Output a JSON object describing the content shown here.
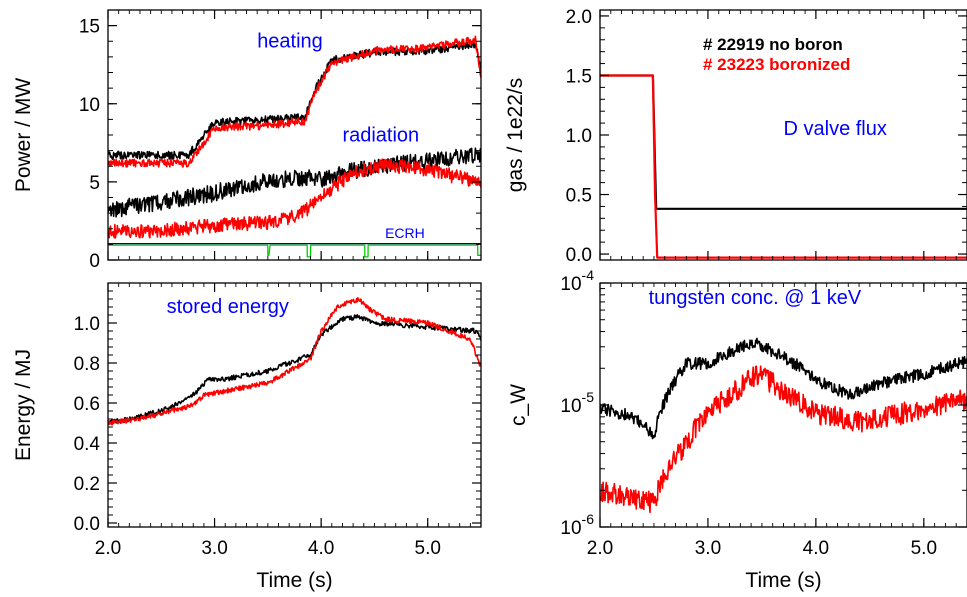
{
  "colors": {
    "black": "#000000",
    "red": "#ff0000",
    "blue": "#0000ff",
    "green": "#00cc00",
    "darkblue": "#0000aa"
  },
  "chart_data": [
    {
      "id": "power",
      "type": "line",
      "ylabel": "Power / MW",
      "xlabel": "",
      "xlim": [
        2.0,
        5.5
      ],
      "ylim": [
        0,
        16
      ],
      "yticks": [
        0,
        5,
        10,
        15
      ],
      "ytick_labels": [
        "0",
        "5",
        "10",
        "15"
      ],
      "xticks": [
        2.0,
        3.0,
        4.0,
        5.0
      ],
      "xtick_labels": [
        "",
        "",
        "",
        ""
      ],
      "annotations": [
        {
          "text": "heating",
          "x": 3.4,
          "y": 13.6,
          "color": "blue"
        },
        {
          "text": "radiation",
          "x": 4.2,
          "y": 7.6,
          "color": "blue"
        },
        {
          "text": "ECRH",
          "x": 4.6,
          "y": 1.4,
          "color": "blue",
          "small": true
        }
      ],
      "series": [
        {
          "key": "heating_black",
          "color": "black",
          "noise": 0.25,
          "x": [
            2.0,
            2.75,
            2.85,
            3.0,
            3.5,
            3.85,
            3.95,
            4.1,
            4.5,
            5.0,
            5.45,
            5.5
          ],
          "y": [
            6.7,
            6.7,
            7.5,
            8.8,
            9.0,
            9.2,
            11.0,
            12.8,
            13.3,
            13.4,
            13.8,
            12.3
          ]
        },
        {
          "key": "heating_red",
          "color": "red",
          "noise": 0.25,
          "x": [
            2.0,
            2.75,
            2.85,
            3.0,
            3.5,
            3.85,
            3.95,
            4.1,
            4.5,
            5.0,
            5.45,
            5.5
          ],
          "y": [
            6.2,
            6.2,
            7.0,
            8.5,
            8.6,
            8.9,
            10.8,
            12.6,
            13.4,
            13.6,
            14.1,
            11.8
          ]
        },
        {
          "key": "radiation_black",
          "color": "black",
          "noise": 0.55,
          "x": [
            2.0,
            2.5,
            3.0,
            3.5,
            3.9,
            4.0,
            4.5,
            5.0,
            5.5
          ],
          "y": [
            3.2,
            3.7,
            4.3,
            5.1,
            5.3,
            5.2,
            6.0,
            6.3,
            6.7
          ]
        },
        {
          "key": "radiation_red",
          "color": "red",
          "noise": 0.45,
          "x": [
            2.0,
            2.5,
            3.0,
            3.5,
            3.8,
            4.0,
            4.3,
            4.6,
            5.0,
            5.5
          ],
          "y": [
            1.8,
            1.9,
            2.2,
            2.4,
            2.9,
            4.0,
            5.6,
            6.1,
            5.8,
            4.9
          ]
        },
        {
          "key": "ecrh_blue",
          "color": "darkblue",
          "noise": 0.0,
          "x": [
            2.0,
            5.5
          ],
          "y": [
            1.05,
            1.05
          ]
        },
        {
          "key": "ecrh_green",
          "color": "green",
          "noise": 0.0,
          "x": [
            2.0,
            3.499,
            3.5,
            3.51,
            3.52,
            3.869,
            3.87,
            3.9,
            3.901,
            4.409,
            4.41,
            4.44,
            4.441,
            5.469,
            5.47,
            5.5
          ],
          "y": [
            0.95,
            0.95,
            0.3,
            0.3,
            0.95,
            0.95,
            0.2,
            0.2,
            0.95,
            0.95,
            0.2,
            0.2,
            0.95,
            0.95,
            0.3,
            0.3
          ]
        }
      ]
    },
    {
      "id": "gas",
      "type": "line",
      "ylabel": "gas / 1e22/s",
      "xlabel": "",
      "xlim": [
        2.0,
        5.4
      ],
      "ylim": [
        -0.05,
        2.05
      ],
      "yticks": [
        0.0,
        0.5,
        1.0,
        1.5,
        2.0
      ],
      "ytick_labels": [
        "0.0",
        "0.5",
        "1.0",
        "1.5",
        "2.0"
      ],
      "xticks": [
        2.0,
        3.0,
        4.0,
        5.0
      ],
      "xtick_labels": [
        "",
        "",
        "",
        ""
      ],
      "annotations": [
        {
          "text": "D valve flux",
          "x": 3.7,
          "y": 1.0,
          "color": "blue"
        }
      ],
      "legend": [
        {
          "text": "# 22919 no boron",
          "color": "black"
        },
        {
          "text": "# 23223 boronized",
          "color": "red"
        }
      ],
      "series": [
        {
          "key": "gas_black",
          "color": "black",
          "noise": 0.0,
          "x": [
            2.0,
            2.49,
            2.52,
            2.53,
            5.4
          ],
          "y": [
            1.5,
            1.5,
            0.38,
            0.38,
            0.38
          ]
        },
        {
          "key": "gas_red",
          "color": "red",
          "noise": 0.0,
          "x": [
            2.0,
            2.49,
            2.51,
            2.53,
            5.4
          ],
          "y": [
            1.5,
            1.5,
            0.5,
            -0.03,
            -0.03
          ]
        }
      ]
    },
    {
      "id": "energy",
      "type": "line",
      "ylabel": "Energy / MJ",
      "xlabel": "Time (s)",
      "xlim": [
        2.0,
        5.5
      ],
      "ylim": [
        -0.02,
        1.2
      ],
      "yticks": [
        0.0,
        0.2,
        0.4,
        0.6,
        0.8,
        1.0
      ],
      "ytick_labels": [
        "0.0",
        "0.2",
        "0.4",
        "0.6",
        "0.8",
        "1.0"
      ],
      "xticks": [
        2.0,
        3.0,
        4.0,
        5.0
      ],
      "xtick_labels": [
        "2.0",
        "3.0",
        "4.0",
        "5.0"
      ],
      "annotations": [
        {
          "text": "stored energy",
          "x": 2.55,
          "y": 1.05,
          "color": "blue"
        }
      ],
      "series": [
        {
          "key": "energy_black",
          "color": "black",
          "noise": 0.012,
          "x": [
            2.0,
            2.3,
            2.6,
            2.8,
            2.95,
            3.1,
            3.5,
            3.9,
            4.0,
            4.2,
            4.35,
            4.5,
            5.0,
            5.45,
            5.5
          ],
          "y": [
            0.5,
            0.53,
            0.58,
            0.64,
            0.72,
            0.72,
            0.76,
            0.84,
            0.94,
            1.02,
            1.03,
            1.0,
            0.98,
            0.96,
            0.92
          ]
        },
        {
          "key": "energy_red",
          "color": "red",
          "noise": 0.012,
          "x": [
            2.0,
            2.3,
            2.6,
            2.8,
            2.9,
            3.1,
            3.5,
            3.9,
            4.0,
            4.15,
            4.35,
            4.45,
            4.6,
            5.0,
            5.4,
            5.5
          ],
          "y": [
            0.5,
            0.52,
            0.56,
            0.59,
            0.64,
            0.66,
            0.7,
            0.82,
            0.96,
            1.08,
            1.12,
            1.07,
            1.02,
            1.0,
            0.92,
            0.78
          ]
        }
      ]
    },
    {
      "id": "tungsten",
      "type": "line",
      "ylabel": "c_W",
      "xlabel": "Time (s)",
      "xlim": [
        2.0,
        5.4
      ],
      "ylim": [
        1e-06,
        0.0001
      ],
      "yscale": "log",
      "yticks": [
        1e-06,
        1e-05,
        0.0001
      ],
      "ytick_labels": [
        {
          "base": "10",
          "exp": "-6"
        },
        {
          "base": "10",
          "exp": "-5"
        },
        {
          "base": "10",
          "exp": "-4"
        }
      ],
      "xticks": [
        2.0,
        3.0,
        4.0,
        5.0
      ],
      "xtick_labels": [
        "2.0",
        "3.0",
        "4.0",
        "5.0"
      ],
      "annotations": [
        {
          "text": "tungsten conc. @ 1 keV",
          "x": 2.45,
          "y": 6.7e-05,
          "color": "blue"
        }
      ],
      "series": [
        {
          "key": "tungsten_black",
          "color": "black",
          "noise": 0.05,
          "x": [
            2.0,
            2.3,
            2.5,
            2.7,
            2.8,
            3.0,
            3.2,
            3.45,
            3.6,
            3.8,
            4.0,
            4.3,
            4.6,
            5.0,
            5.4
          ],
          "y": [
            9.5e-06,
            8e-06,
            5.5e-06,
            1.6e-05,
            2.2e-05,
            2.2e-05,
            2.7e-05,
            3.3e-05,
            2.7e-05,
            2.2e-05,
            1.6e-05,
            1.2e-05,
            1.5e-05,
            1.8e-05,
            2.3e-05
          ]
        },
        {
          "key": "tungsten_red",
          "color": "red",
          "noise": 0.09,
          "x": [
            2.0,
            2.3,
            2.5,
            2.6,
            2.8,
            3.0,
            3.3,
            3.45,
            3.7,
            4.0,
            4.4,
            4.8,
            5.1,
            5.4
          ],
          "y": [
            2e-06,
            1.7e-06,
            1.6e-06,
            2.6e-06,
            4.8e-06,
            8.5e-06,
            1.4e-05,
            1.8e-05,
            1.3e-05,
            8.5e-06,
            7.2e-06,
            8.5e-06,
            1e-05,
            1.1e-05
          ]
        }
      ]
    }
  ]
}
